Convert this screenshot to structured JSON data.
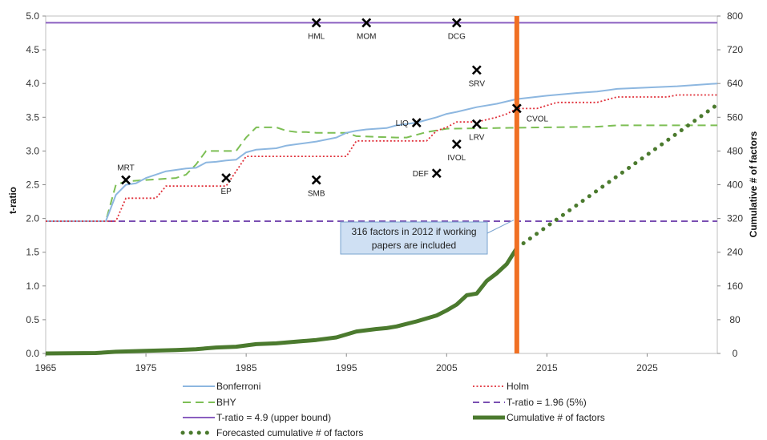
{
  "chart_data": {
    "type": "line",
    "xlim": [
      1965,
      2032
    ],
    "ylim_left": [
      0,
      5.0
    ],
    "ylim_right": [
      0,
      800
    ],
    "xticks": [
      1965,
      1975,
      1985,
      1995,
      2005,
      2015,
      2025
    ],
    "yticks_left": [
      "0.0",
      "0.5",
      "1.0",
      "1.5",
      "2.0",
      "2.5",
      "3.0",
      "3.5",
      "4.0",
      "4.5",
      "5.0"
    ],
    "yticks_right": [
      "0",
      "80",
      "160",
      "240",
      "320",
      "400",
      "480",
      "560",
      "640",
      "720",
      "800"
    ],
    "ylabel_left": "t-ratio",
    "ylabel_right": "Cumulative # of factors",
    "vertical_marker_year": 2012,
    "callout": {
      "line1": "316  factors in 2012 if  working",
      "line2": "papers are included"
    },
    "colors": {
      "bonferroni": "#8db7e0",
      "holm": "#e0303a",
      "bhy": "#7dbf55",
      "t196": "#7a4fb2",
      "t49": "#8a5fc0",
      "cumulative": "#4b7a2e",
      "forecast": "#4b7a2e",
      "marker_line": "#f07024",
      "callout_fill": "#cfe0f3",
      "callout_border": "#7aa3cf"
    },
    "series": [
      {
        "key": "bonferroni",
        "name": "Bonferroni",
        "axis": "left",
        "x": [
          1965,
          1971,
          1972,
          1973,
          1974,
          1975,
          1977,
          1979,
          1980,
          1981,
          1982,
          1983,
          1984,
          1985,
          1986,
          1987,
          1988,
          1989,
          1990,
          1992,
          1994,
          1995,
          1996,
          1997,
          1999,
          2000,
          2002,
          2004,
          2005,
          2006,
          2008,
          2010,
          2012,
          2015,
          2018,
          2020,
          2022,
          2025,
          2028,
          2032
        ],
        "values": [
          1.96,
          1.96,
          2.35,
          2.5,
          2.52,
          2.6,
          2.7,
          2.74,
          2.75,
          2.83,
          2.84,
          2.86,
          2.87,
          2.98,
          3.02,
          3.03,
          3.04,
          3.08,
          3.1,
          3.14,
          3.2,
          3.27,
          3.3,
          3.32,
          3.34,
          3.38,
          3.42,
          3.5,
          3.55,
          3.58,
          3.65,
          3.7,
          3.77,
          3.82,
          3.86,
          3.88,
          3.92,
          3.94,
          3.96,
          4.0
        ]
      },
      {
        "key": "holm",
        "name": "Holm",
        "axis": "left",
        "x": [
          1965,
          1971,
          1972,
          1973,
          1976,
          1977,
          1983,
          1984,
          1985,
          1995,
          1996,
          2003,
          2004,
          2005,
          2006,
          2008,
          2010,
          2011,
          2012,
          2014,
          2016,
          2020,
          2022,
          2027,
          2028,
          2032
        ],
        "values": [
          1.96,
          1.96,
          1.96,
          2.3,
          2.3,
          2.48,
          2.48,
          2.7,
          2.92,
          2.92,
          3.15,
          3.15,
          3.3,
          3.35,
          3.43,
          3.43,
          3.5,
          3.55,
          3.63,
          3.63,
          3.72,
          3.72,
          3.8,
          3.8,
          3.83,
          3.83
        ]
      },
      {
        "key": "bhy",
        "name": "BHY",
        "axis": "left",
        "x": [
          1965,
          1971,
          1972,
          1973,
          1978,
          1979,
          1980,
          1981,
          1982,
          1983,
          1984,
          1985,
          1986,
          1987,
          1988,
          1989,
          1990,
          1991,
          1992,
          1995,
          1996,
          2000,
          2001,
          2003,
          2005,
          2015,
          2020,
          2022,
          2032
        ],
        "values": [
          1.96,
          1.96,
          2.5,
          2.55,
          2.6,
          2.65,
          2.8,
          3.0,
          3.0,
          3.0,
          3.0,
          3.2,
          3.35,
          3.35,
          3.35,
          3.3,
          3.28,
          3.28,
          3.27,
          3.27,
          3.22,
          3.2,
          3.2,
          3.28,
          3.33,
          3.35,
          3.36,
          3.38,
          3.38
        ]
      },
      {
        "key": "t196",
        "name": "T-ratio = 1.96 (5%)",
        "axis": "left",
        "x": [
          1965,
          2032
        ],
        "values": [
          1.96,
          1.96
        ]
      },
      {
        "key": "t49",
        "name": "T-ratio = 4.9 (upper bound)",
        "axis": "left",
        "x": [
          1965,
          2032
        ],
        "values": [
          4.9,
          4.9
        ]
      },
      {
        "key": "cumulative",
        "name": "Cumulative # of factors",
        "axis": "right",
        "x": [
          1965,
          1970,
          1972,
          1975,
          1978,
          1980,
          1982,
          1984,
          1986,
          1988,
          1990,
          1992,
          1994,
          1996,
          1998,
          1999,
          2000,
          2002,
          2004,
          2005,
          2006,
          2007,
          2008,
          2009,
          2010,
          2011,
          2012
        ],
        "values": [
          0,
          1,
          4,
          6,
          8,
          10,
          14,
          16,
          22,
          24,
          28,
          32,
          38,
          52,
          58,
          60,
          64,
          76,
          90,
          102,
          116,
          138,
          142,
          172,
          190,
          212,
          250
        ]
      },
      {
        "key": "forecast",
        "name": "Forecasted cumulative # of factors",
        "axis": "right",
        "x": [
          2012,
          2032
        ],
        "values": [
          250,
          590
        ]
      }
    ],
    "factors": [
      {
        "label": "MRT",
        "x": 1973,
        "y": 2.57,
        "pos": "above"
      },
      {
        "label": "EP",
        "x": 1983,
        "y": 2.6,
        "pos": "below"
      },
      {
        "label": "SMB",
        "x": 1992,
        "y": 2.57,
        "pos": "below"
      },
      {
        "label": "HML",
        "x": 1992,
        "y": 4.9,
        "pos": "below"
      },
      {
        "label": "MOM",
        "x": 1997,
        "y": 4.9,
        "pos": "below"
      },
      {
        "label": "DCG",
        "x": 2006,
        "y": 4.9,
        "pos": "below"
      },
      {
        "label": "SRV",
        "x": 2008,
        "y": 4.2,
        "pos": "below"
      },
      {
        "label": "LIQ",
        "x": 2002,
        "y": 3.42,
        "pos": "left"
      },
      {
        "label": "CVOL",
        "x": 2012,
        "y": 3.63,
        "pos": "right-below"
      },
      {
        "label": "LRV",
        "x": 2008,
        "y": 3.4,
        "pos": "below"
      },
      {
        "label": "IVOL",
        "x": 2006,
        "y": 3.1,
        "pos": "below"
      },
      {
        "label": "DEF",
        "x": 2004,
        "y": 2.67,
        "pos": "left"
      }
    ],
    "legend": [
      {
        "key": "bonferroni",
        "label": "Bonferroni"
      },
      {
        "key": "holm",
        "label": "Holm"
      },
      {
        "key": "bhy",
        "label": "BHY"
      },
      {
        "key": "t196",
        "label": "T-ratio = 1.96 (5%)"
      },
      {
        "key": "t49",
        "label": "T-ratio = 4.9 (upper bound)"
      },
      {
        "key": "cumulative",
        "label": "Cumulative # of factors"
      },
      {
        "key": "forecast",
        "label": "Forecasted cumulative # of factors"
      }
    ]
  }
}
